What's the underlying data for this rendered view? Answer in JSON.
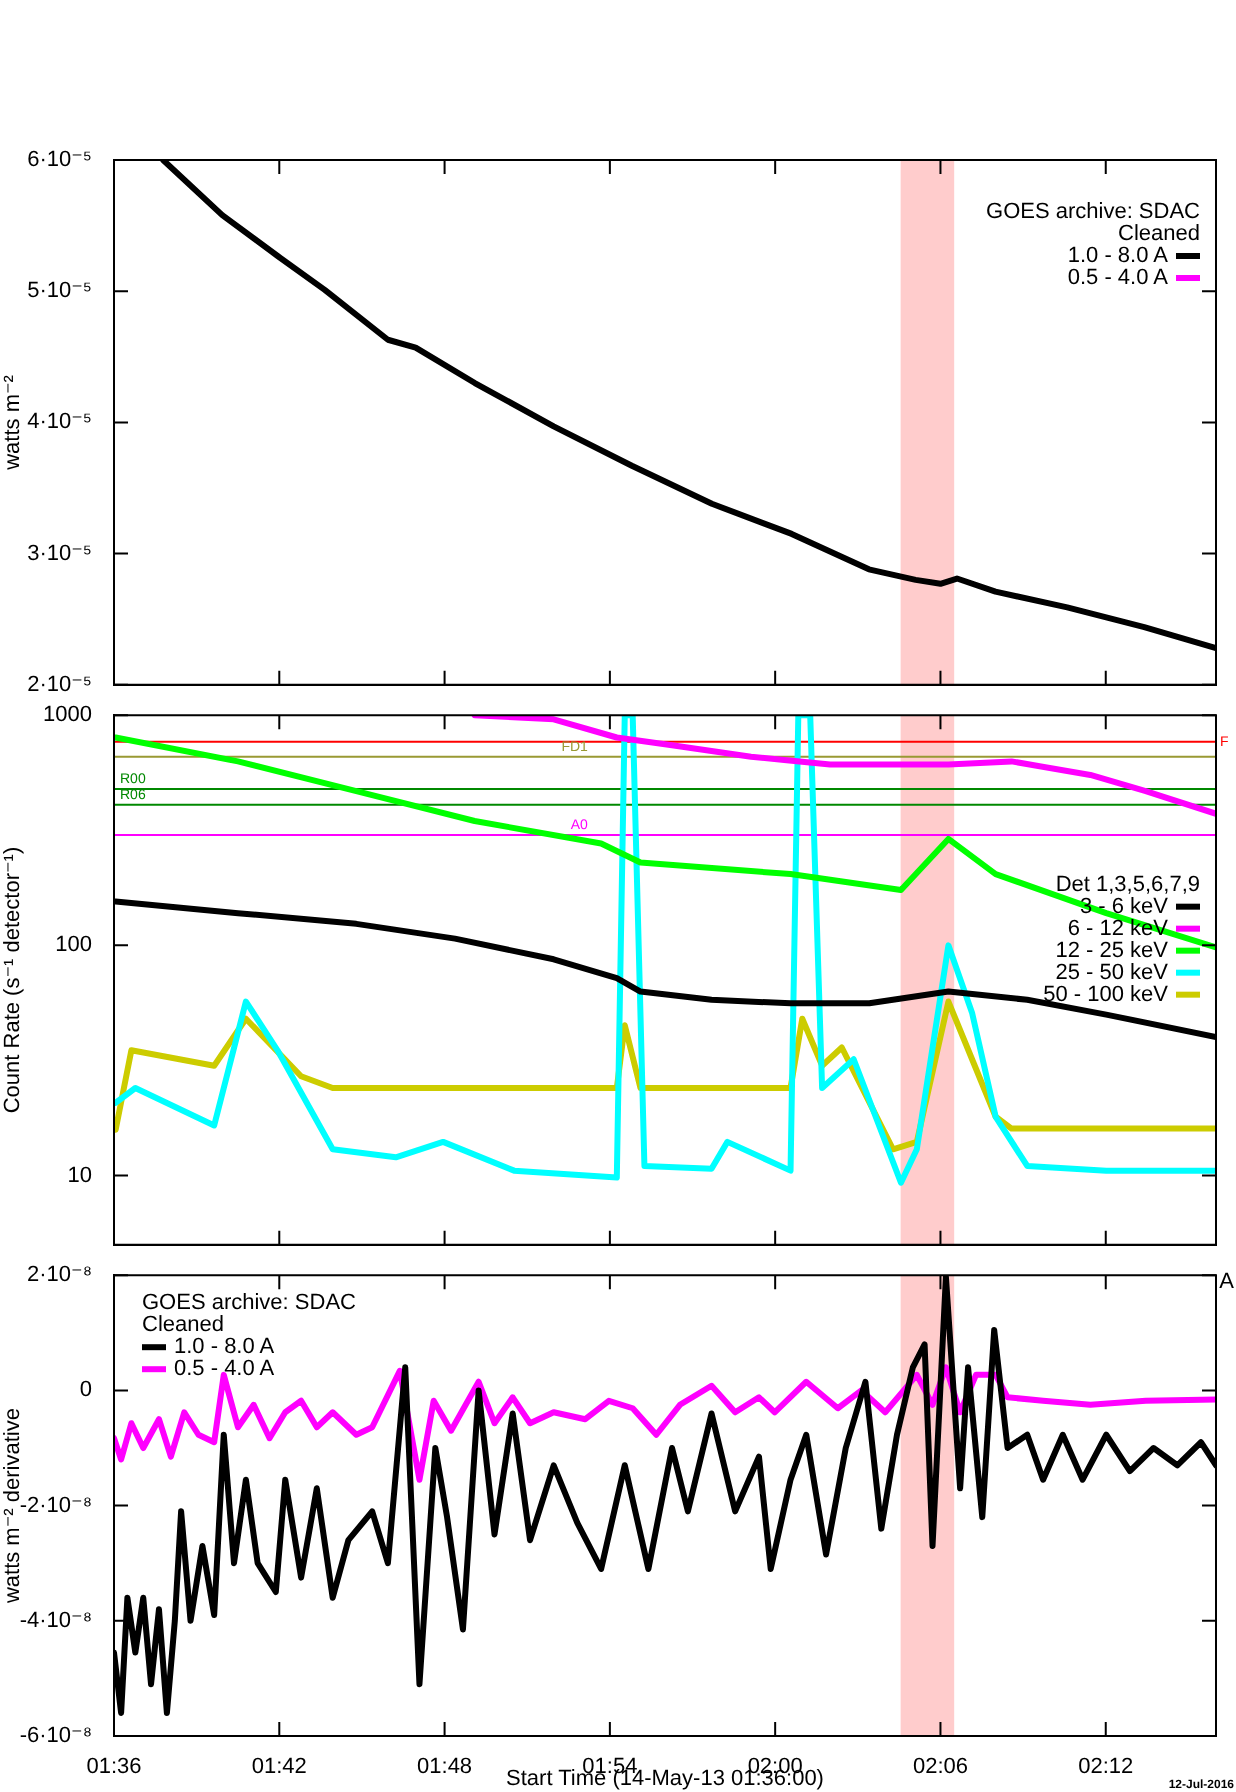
{
  "chart_data": [
    {
      "type": "line",
      "ylabel": "watts m⁻²",
      "xlim": [
        1.6,
        2.2667
      ],
      "xticks": [
        {
          "value": 1.6,
          "label": null
        },
        {
          "value": 1.7,
          "label": null
        },
        {
          "value": 1.8,
          "label": null
        },
        {
          "value": 1.9,
          "label": null
        },
        {
          "value": 2.0,
          "label": null
        },
        {
          "value": 2.1,
          "label": null
        },
        {
          "value": 2.2,
          "label": null
        }
      ],
      "ylim": [
        2e-05,
        6e-05
      ],
      "yticks": [
        {
          "value": 2e-05,
          "label": "2·10⁻⁵"
        },
        {
          "value": 3e-05,
          "label": "3·10⁻⁵"
        },
        {
          "value": 4e-05,
          "label": "4·10⁻⁵"
        },
        {
          "value": 5e-05,
          "label": "5·10⁻⁵"
        },
        {
          "value": 6e-05,
          "label": "6·10⁻⁵"
        }
      ],
      "tick_labels": "y",
      "legend": "top right",
      "legend_title": "GOES archive: SDAC\nCleaned",
      "bands": [
        {
          "axis": "x",
          "from": 2.0759,
          "to": 2.1083,
          "color": "#ffcccc"
        }
      ],
      "series": [
        {
          "name": "1.0 - 8.0 A",
          "color": "#000000",
          "x": [
            1.6297,
            1.6655,
            1.6988,
            1.7275,
            1.7657,
            1.7825,
            1.8183,
            1.866,
            1.9133,
            1.9617,
            2.01,
            2.0567,
            2.085,
            2.1,
            2.11,
            2.1333,
            2.1767,
            2.2233,
            2.2667
          ],
          "values": [
            6e-05,
            5.58e-05,
            5.27e-05,
            5.01e-05,
            4.63e-05,
            4.57e-05,
            4.3e-05,
            3.97e-05,
            3.67e-05,
            3.38e-05,
            3.15e-05,
            2.88e-05,
            2.8e-05,
            2.77e-05,
            2.81e-05,
            2.71e-05,
            2.59e-05,
            2.44e-05,
            2.28e-05
          ]
        },
        {
          "name": "0.5 - 4.0 A",
          "color": "#ff00ff"
        }
      ]
    },
    {
      "type": "line",
      "ylabel": "Count Rate (s⁻¹ detector⁻¹)",
      "log": true,
      "xlim": [
        1.6,
        2.2667
      ],
      "xticks": [
        {
          "value": 1.6,
          "label": null
        },
        {
          "value": 1.7,
          "label": null
        },
        {
          "value": 1.8,
          "label": null
        },
        {
          "value": 1.9,
          "label": null
        },
        {
          "value": 2.0,
          "label": null
        },
        {
          "value": 2.1,
          "label": null
        },
        {
          "value": 2.2,
          "label": null
        }
      ],
      "ylim": [
        5,
        1000
      ],
      "yticks": [
        10,
        100,
        1000
      ],
      "tick_labels": "y",
      "legend": "right",
      "legend_title": "Det 1,3,5,6,7,9",
      "bands": [
        {
          "axis": "x",
          "from": 2.0759,
          "to": 2.1083,
          "color": "#ffcccc"
        }
      ],
      "ref_lines": [
        {
          "axis": "y",
          "value": 767,
          "label": "F",
          "color": "#ff0000"
        },
        {
          "axis": "y",
          "value": 660,
          "label": "FD1",
          "color": "#999933"
        },
        {
          "axis": "y",
          "value": 478,
          "label": "R00",
          "color": "#008800"
        },
        {
          "axis": "y",
          "value": 408,
          "label": "R06",
          "color": "#008800"
        },
        {
          "axis": "y",
          "value": 302,
          "label": "A0",
          "color": "#ff00ff"
        }
      ],
      "series": [
        {
          "name": "3 - 6 keV",
          "color": "#000000",
          "x": [
            1.601,
            1.675,
            1.7466,
            1.8063,
            1.866,
            1.9042,
            1.9185,
            1.9615,
            2.0093,
            2.057,
            2.1048,
            2.1525,
            2.2003,
            2.2667
          ],
          "values": [
            155,
            138,
            124,
            107,
            87,
            72,
            63,
            58,
            56,
            56,
            63,
            58,
            50,
            40
          ]
        },
        {
          "name": "6 - 12 keV",
          "color": "#ff00ff",
          "x": [
            1.8182,
            1.866,
            1.9042,
            1.9376,
            1.9854,
            2.0332,
            2.1048,
            2.143,
            2.1907,
            2.2242,
            2.2667
          ],
          "values": [
            1000,
            960,
            800,
            740,
            660,
            610,
            610,
            630,
            550,
            468,
            373
          ]
        },
        {
          "name": "12 - 25 keV",
          "color": "#00ff00",
          "x": [
            1.601,
            1.675,
            1.7466,
            1.8182,
            1.8947,
            1.9185,
            2.0093,
            2.0761,
            2.1048,
            2.1334,
            2.2003,
            2.2667
          ],
          "values": [
            800,
            630,
            468,
            347,
            277,
            229,
            204,
            174,
            290,
            204,
            138,
            98
          ]
        },
        {
          "name": "25 - 50 keV",
          "color": "#00ffff",
          "x": [
            1.601,
            1.6129,
            1.6606,
            1.6798,
            1.6989,
            1.7323,
            1.7705,
            1.7991,
            1.8421,
            1.9042,
            1.909,
            1.9138,
            1.9209,
            1.9615,
            1.9711,
            2.0093,
            2.014,
            2.0212,
            2.0284,
            2.0475,
            2.0761,
            2.0857,
            2.1048,
            2.1191,
            2.1334,
            2.1525,
            2.2003,
            2.2667
          ],
          "values": [
            20.7,
            24,
            16.5,
            57,
            35,
            13,
            12,
            14,
            10.5,
            9.8,
            1000,
            1000,
            11,
            10.7,
            14,
            10.5,
            1000,
            1000,
            24,
            32,
            9.3,
            13,
            100,
            51,
            18,
            11,
            10.5,
            10.5
          ]
        },
        {
          "name": "50 - 100 keV",
          "color": "#cccc00",
          "x": [
            1.601,
            1.6105,
            1.6606,
            1.6798,
            1.7132,
            1.7323,
            1.9042,
            1.909,
            1.9185,
            2.0093,
            2.0164,
            2.0284,
            2.0403,
            2.0713,
            2.0857,
            2.1048,
            2.1334,
            2.143,
            2.2667
          ],
          "values": [
            15.8,
            35,
            30,
            48,
            27,
            24,
            24,
            45,
            24,
            24,
            48,
            30,
            36,
            13,
            14,
            57,
            18,
            16,
            16
          ]
        }
      ]
    },
    {
      "type": "line",
      "xlabel": "Start Time (14-May-13 01:36:00)",
      "ylabel": "watts m⁻² derivative",
      "xlim": [
        1.6,
        2.2667
      ],
      "xticks": [
        {
          "value": 1.6,
          "label": "01:36"
        },
        {
          "value": 1.7,
          "label": "01:42"
        },
        {
          "value": 1.8,
          "label": "01:48"
        },
        {
          "value": 1.9,
          "label": "01:54"
        },
        {
          "value": 2.0,
          "label": "02:00"
        },
        {
          "value": 2.1,
          "label": "02:06"
        },
        {
          "value": 2.2,
          "label": "02:12"
        }
      ],
      "ylim": [
        -6e-08,
        2e-08
      ],
      "yticks": [
        {
          "value": -6e-08,
          "label": "-6·10⁻⁸"
        },
        {
          "value": -4e-08,
          "label": "-4·10⁻⁸"
        },
        {
          "value": -2e-08,
          "label": "-2·10⁻⁸"
        },
        0,
        {
          "value": 2e-08,
          "label": "2·10⁻⁸"
        }
      ],
      "legend": "top left",
      "legend_title": "GOES archive: SDAC\nCleaned",
      "bands": [
        {
          "axis": "x",
          "from": 2.0759,
          "to": 2.1083,
          "color": "#ffcccc"
        }
      ],
      "annotations": [
        "A",
        "12-Jul-2016"
      ],
      "series": [
        {
          "name": "1.0 - 8.0 A",
          "color": "#000000",
          "x": [
            1.6,
            1.6043,
            1.6081,
            1.6129,
            1.6177,
            1.6224,
            1.6272,
            1.632,
            1.6368,
            1.6406,
            1.6463,
            1.6535,
            1.6606,
            1.6664,
            1.6726,
            1.6798,
            1.6869,
            1.6979,
            1.7036,
            1.7132,
            1.7227,
            1.7323,
            1.7418,
            1.7562,
            1.7657,
            1.7762,
            1.7848,
            1.7944,
            1.8015,
            1.8111,
            1.8206,
            1.8302,
            1.8412,
            1.8517,
            1.866,
            1.8803,
            1.8947,
            1.909,
            1.9233,
            1.9376,
            1.9472,
            1.9615,
            1.9758,
            1.9902,
            1.9973,
            2.0093,
            2.0188,
            2.0308,
            2.0427,
            2.0546,
            2.0642,
            2.0737,
            2.0833,
            2.0904,
            2.0952,
            2.1033,
            2.1119,
            2.1167,
            2.1253,
            2.1325,
            2.1406,
            2.1525,
            2.1621,
            2.174,
            2.186,
            2.2003,
            2.2146,
            2.2289,
            2.2433,
            2.2576,
            2.2667
          ],
          "values": [
            -4.55e-08,
            -5.6e-08,
            -3.6e-08,
            -4.55e-08,
            -3.6e-08,
            -5.1e-08,
            -3.8e-08,
            -5.6e-08,
            -4e-08,
            -2.1e-08,
            -4e-08,
            -2.7e-08,
            -3.9e-08,
            -7.7e-09,
            -3e-08,
            -1.55e-08,
            -3e-08,
            -3.5e-08,
            -1.55e-08,
            -3.25e-08,
            -1.7e-08,
            -3.6e-08,
            -2.6e-08,
            -2.1e-08,
            -3e-08,
            4e-09,
            -5.1e-08,
            -1e-08,
            -2.2e-08,
            -4.15e-08,
            0,
            -2.5e-08,
            -4e-09,
            -2.6e-08,
            -1.3e-08,
            -2.3e-08,
            -3.1e-08,
            -1.3e-08,
            -3.1e-08,
            -1e-08,
            -2.1e-08,
            -4e-09,
            -2.1e-08,
            -1.15e-08,
            -3.1e-08,
            -1.55e-08,
            -7.7e-09,
            -2.85e-08,
            -1e-08,
            1.5e-09,
            -2.4e-08,
            -7.7e-09,
            4e-09,
            8e-09,
            -2.7e-08,
            1.97e-08,
            -1.7e-08,
            4e-09,
            -2.2e-08,
            1.05e-08,
            -1e-08,
            -7.7e-09,
            -1.55e-08,
            -7.7e-09,
            -1.55e-08,
            -7.7e-09,
            -1.4e-08,
            -1e-08,
            -1.3e-08,
            -9e-09,
            -1.3e-08
          ]
        },
        {
          "name": "0.5 - 4.0 A",
          "color": "#ff00ff",
          "x": [
            1.6,
            1.6043,
            1.6105,
            1.6177,
            1.6272,
            1.6344,
            1.6425,
            1.6511,
            1.6606,
            1.6664,
            1.675,
            1.6845,
            1.6941,
            1.7036,
            1.7132,
            1.7227,
            1.7323,
            1.7466,
            1.7562,
            1.7729,
            1.7848,
            1.7934,
            1.8039,
            1.8206,
            1.8302,
            1.8412,
            1.8517,
            1.866,
            1.8851,
            1.8994,
            1.9138,
            1.9281,
            1.9424,
            1.9615,
            1.9758,
            1.9902,
            1.9997,
            2.0188,
            2.0379,
            2.0522,
            2.0666,
            2.0857,
            2.0952,
            2.1033,
            2.1119,
            2.1215,
            2.1334,
            2.1406,
            2.1621,
            2.1907,
            2.2242,
            2.2667
          ],
          "values": [
            -8.3e-09,
            -1.2e-08,
            -5.7e-09,
            -1e-08,
            -5e-09,
            -1.15e-08,
            -3.8e-09,
            -7.7e-09,
            -9e-09,
            2.7e-09,
            -6.4e-09,
            -2.5e-09,
            -8.3e-09,
            -3.8e-09,
            -1.8e-09,
            -6.4e-09,
            -3.8e-09,
            -7.7e-09,
            -6.4e-09,
            3.4e-09,
            -1.55e-08,
            -1.8e-09,
            -7e-09,
            1.5e-09,
            -5.7e-09,
            -1.2e-09,
            -5.7e-09,
            -3.8e-09,
            -5e-09,
            -1.8e-09,
            -3.1e-09,
            -7.7e-09,
            -2.5e-09,
            8e-10,
            -3.8e-09,
            -1.2e-09,
            -3.8e-09,
            1.5e-09,
            -3.1e-09,
            0,
            -3.8e-09,
            2.7e-09,
            -2.5e-09,
            4e-09,
            -3.8e-09,
            2.7e-09,
            2.7e-09,
            -1.2e-09,
            -1.8e-09,
            -2.5e-09,
            -1.8e-09,
            -1.6e-09
          ]
        }
      ]
    }
  ]
}
